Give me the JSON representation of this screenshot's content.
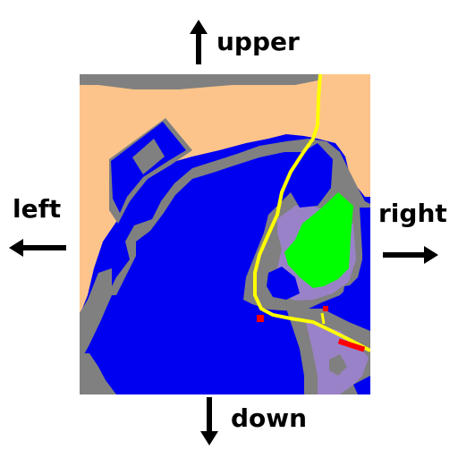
{
  "directions": {
    "upper": "upper",
    "down": "down",
    "left": "left",
    "right": "right"
  },
  "map": {
    "colors": {
      "land": "#FCC48A",
      "water": "#0000F0",
      "shore": "#808080",
      "park": "#00FF00",
      "district": "#9A82C8",
      "road": "#FFFF00",
      "marker": "#FF0000"
    }
  },
  "icons": {
    "up": "arrow-up-icon",
    "down": "arrow-down-icon",
    "left": "arrow-left-icon",
    "right": "arrow-right-icon"
  }
}
